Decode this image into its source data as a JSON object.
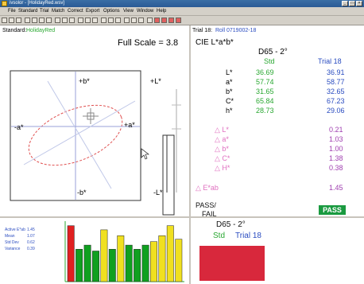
{
  "window": {
    "title": "ivsolor - [HolidayRed.wsv]"
  },
  "menu": [
    "File",
    "Standard",
    "Trial",
    "Match",
    "Correct",
    "Export",
    "Options",
    "View",
    "Window",
    "Help"
  ],
  "left_header": {
    "standard_label": "Standard:",
    "standard_name": "HolidayRed",
    "full_scale": "Full Scale = 3.8"
  },
  "axes": {
    "plus_b": "+b*",
    "minus_b": "-b*",
    "minus_a": "-a*",
    "plus_a": "+a*",
    "plus_L": "+L*",
    "minus_L": "-L*"
  },
  "right_header": {
    "trial_label": "Trial 18:",
    "trial_name": "Roll 0719002-18",
    "space": "CIE L*a*b*"
  },
  "table": {
    "illuminant": "D65 - 2°",
    "col_std": "Std",
    "col_trial": "Trial 18",
    "rows": [
      {
        "label": "L*",
        "std": "36.69",
        "trial": "36.91"
      },
      {
        "label": "a*",
        "std": "57.74",
        "trial": "58.77"
      },
      {
        "label": "b*",
        "std": "31.65",
        "trial": "32.65"
      },
      {
        "label": "C*",
        "std": "65.84",
        "trial": "67.23"
      },
      {
        "label": "h*",
        "std": "28.73",
        "trial": "29.06"
      }
    ],
    "deltas": [
      {
        "label": "△ L*",
        "value": "0.21"
      },
      {
        "label": "△ a*",
        "value": "1.03"
      },
      {
        "label": "△ b*",
        "value": "1.00"
      },
      {
        "label": "△ C*",
        "value": "1.38"
      },
      {
        "label": "△ H*",
        "value": "0.38"
      }
    ],
    "de_label": "△ E*ab",
    "de_value": "1.45",
    "passfail_label1": "PASS/",
    "passfail_label2": "FAIL",
    "pass_value": "PASS"
  },
  "stats": [
    {
      "name": "Active E*ab",
      "value": "1.45"
    },
    {
      "name": "Mean",
      "value": "1.07"
    },
    {
      "name": "Std Dev",
      "value": "0.62"
    },
    {
      "name": "Variance",
      "value": "0.39"
    }
  ],
  "bars": {
    "max_value": 1.0,
    "values": [
      0.95,
      0.55,
      0.62,
      0.52,
      0.88,
      0.55,
      0.78,
      0.62,
      0.55,
      0.62,
      0.68,
      0.78,
      0.95,
      0.72
    ],
    "colors": [
      "#e02020",
      "#10a020",
      "#10a020",
      "#10a020",
      "#f0e020",
      "#10a020",
      "#f0e020",
      "#10a020",
      "#10a020",
      "#10a020",
      "#f0e020",
      "#f0e020",
      "#f0e020",
      "#f0e020"
    ]
  },
  "bottom_right": {
    "illuminant": "D65 - 2°",
    "std": "Std",
    "trial": "Trial 18",
    "swatch_color": "#d8283c"
  }
}
